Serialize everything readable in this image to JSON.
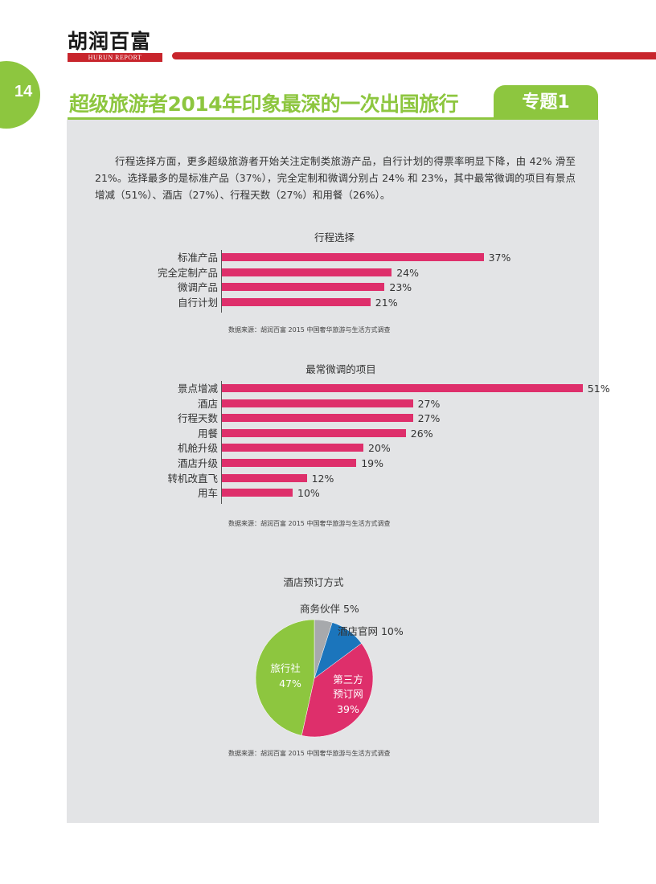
{
  "header": {
    "logo_cn": "胡润百富",
    "logo_en": "HURUN REPORT",
    "page_number": "14",
    "title": "超级旅游者2014年印象最深的一次出国旅行",
    "section_tag": "专题1"
  },
  "intro_text": "行程选择方面，更多超级旅游者开始关注定制类旅游产品，自行计划的得票率明显下降，由 42% 滑至 21%。选择最多的是标准产品（37%），完全定制和微调分别占 24% 和 23%，其中最常微调的项目有景点增减（51%）、酒店（27%）、行程天数（27%）和用餐（26%）。",
  "colors": {
    "green": "#8dc63f",
    "red": "#c8252c",
    "bar": "#de2f6b",
    "blue": "#1b75bc",
    "gray": "#a7a9ac"
  },
  "chart_data": [
    {
      "type": "bar",
      "orientation": "horizontal",
      "title": "行程选择",
      "categories": [
        "标准产品",
        "完全定制产品",
        "微调产品",
        "自行计划"
      ],
      "values": [
        37,
        24,
        23,
        21
      ],
      "value_labels": [
        "37%",
        "24%",
        "23%",
        "21%"
      ],
      "source": "数据来源：胡润百富 2015 中国奢华旅游与生活方式调查"
    },
    {
      "type": "bar",
      "orientation": "horizontal",
      "title": "最常微调的项目",
      "categories": [
        "景点增减",
        "酒店",
        "行程天数",
        "用餐",
        "机舱升级",
        "酒店升级",
        "转机改直飞",
        "用车"
      ],
      "values": [
        51,
        27,
        27,
        26,
        20,
        19,
        12,
        10
      ],
      "value_labels": [
        "51%",
        "27%",
        "27%",
        "26%",
        "20%",
        "19%",
        "12%",
        "10%"
      ],
      "source": "数据来源：胡润百富 2015 中国奢华旅游与生活方式调查"
    },
    {
      "type": "pie",
      "title": "酒店预订方式",
      "slices": [
        {
          "name": "商务伙伴",
          "value": 5,
          "label": "5%",
          "color": "#a7a9ac"
        },
        {
          "name": "酒店官网",
          "value": 10,
          "label": "10%",
          "color": "#1b75bc"
        },
        {
          "name": "第三方预订网",
          "name_line1": "第三方",
          "name_line2": "预订网",
          "value": 39,
          "label": "39%",
          "color": "#de2f6b"
        },
        {
          "name": "旅行社",
          "value": 47,
          "label": "47%",
          "color": "#8dc63f"
        }
      ],
      "source": "数据来源：胡润百富 2015 中国奢华旅游与生活方式调查"
    }
  ]
}
